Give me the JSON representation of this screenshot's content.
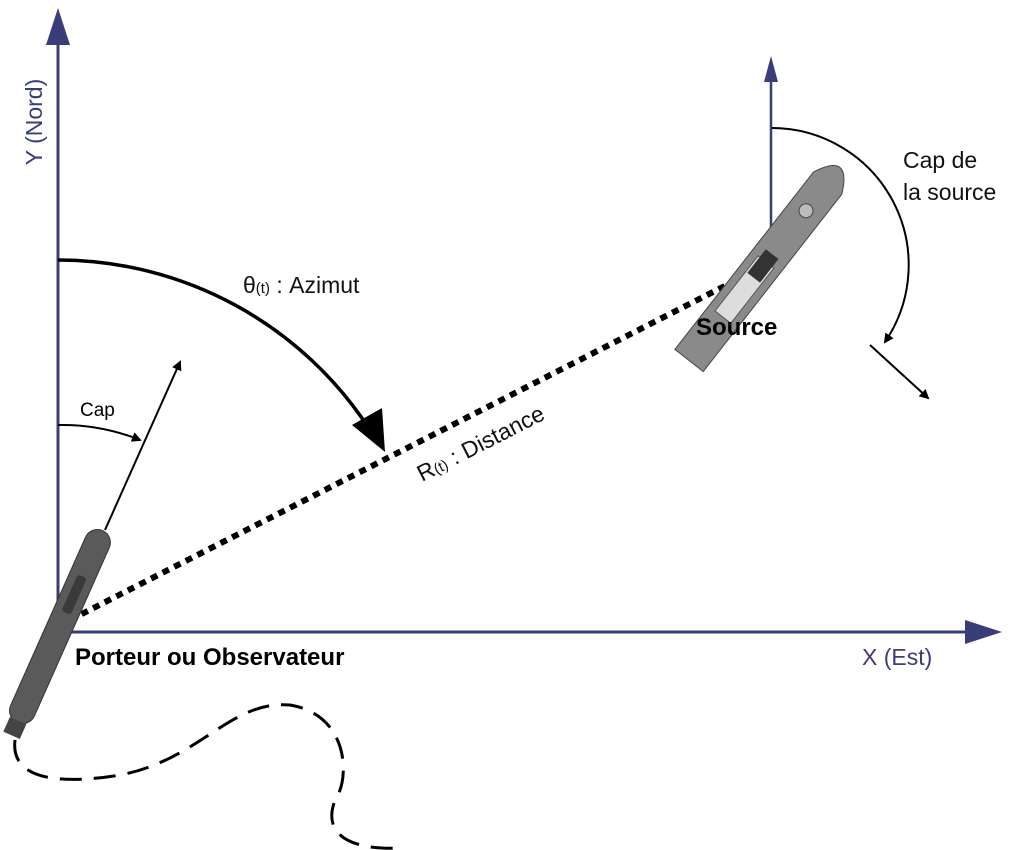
{
  "axes": {
    "y_label": "Y (Nord)",
    "x_label": "X (Est)"
  },
  "azimuth": {
    "symbol": "θ",
    "subscript": "(t)",
    "text": " : Azimut"
  },
  "distance": {
    "symbol": "R",
    "subscript": "(t)",
    "text": " : Distance"
  },
  "heading_label": "Cap",
  "source_heading": {
    "line1": "Cap de",
    "line2": "la source"
  },
  "source_label": "Source",
  "observer_label": "Porteur ou Observateur"
}
